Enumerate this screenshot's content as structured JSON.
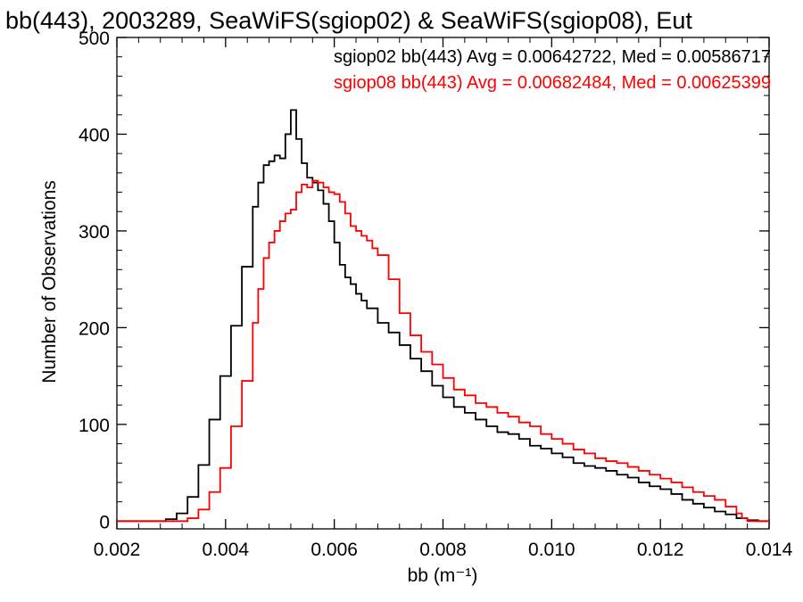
{
  "chart_data": {
    "type": "line",
    "title": "bb(443), 2003289, SeaWiFS(sgiop02) & SeaWiFS(sgiop08), Eut",
    "xlabel": "bb (m⁻¹)",
    "ylabel": "Number of Observations",
    "xlim": [
      0.002,
      0.014
    ],
    "ylim": [
      -8,
      500
    ],
    "grid": false,
    "x_ticks": [
      "0.002",
      "0.004",
      "0.006",
      "0.008",
      "0.010",
      "0.012",
      "0.014"
    ],
    "y_ticks": [
      "0",
      "100",
      "200",
      "300",
      "400",
      "500"
    ],
    "annotations": [
      {
        "text": "sgiop02 bb(443) Avg = 0.00642722, Med = 0.00586717",
        "color": "#000000"
      },
      {
        "text": "sgiop08 bb(443) Avg = 0.00682484, Med = 0.00625399",
        "color": "#ff0000"
      }
    ],
    "series": [
      {
        "color": "#000000",
        "x": [
          0.002,
          0.0025,
          0.0029,
          0.0031,
          0.0033,
          0.0035,
          0.0037,
          0.0039,
          0.0041,
          0.0043,
          0.0045,
          0.0046,
          0.0047,
          0.0048,
          0.0049,
          0.005,
          0.0051,
          0.0052,
          0.0053,
          0.0054,
          0.0055,
          0.0056,
          0.0057,
          0.0058,
          0.0059,
          0.006,
          0.0061,
          0.0062,
          0.0063,
          0.0064,
          0.0065,
          0.0066,
          0.0068,
          0.007,
          0.0072,
          0.0074,
          0.0076,
          0.0078,
          0.008,
          0.0082,
          0.0084,
          0.0086,
          0.0088,
          0.009,
          0.0092,
          0.0094,
          0.0096,
          0.0098,
          0.01,
          0.0102,
          0.0104,
          0.0106,
          0.0108,
          0.011,
          0.0112,
          0.0114,
          0.0116,
          0.0118,
          0.012,
          0.0122,
          0.0124,
          0.0126,
          0.0128,
          0.013,
          0.0132,
          0.0134,
          0.0136,
          0.0138,
          0.014
        ],
        "values": [
          0,
          0,
          2,
          8,
          25,
          58,
          105,
          150,
          202,
          263,
          325,
          350,
          368,
          372,
          378,
          375,
          400,
          425,
          395,
          370,
          355,
          350,
          342,
          328,
          310,
          288,
          265,
          252,
          245,
          235,
          228,
          220,
          205,
          195,
          182,
          168,
          155,
          140,
          128,
          118,
          112,
          105,
          98,
          92,
          90,
          85,
          78,
          75,
          70,
          66,
          60,
          57,
          55,
          52,
          48,
          45,
          40,
          36,
          33,
          28,
          22,
          18,
          14,
          10,
          7,
          3,
          1,
          0,
          0
        ]
      },
      {
        "color": "#ff0000",
        "x": [
          0.002,
          0.003,
          0.0033,
          0.0035,
          0.0037,
          0.0039,
          0.0041,
          0.0043,
          0.0045,
          0.0046,
          0.0047,
          0.0048,
          0.0049,
          0.005,
          0.0051,
          0.0052,
          0.0053,
          0.0054,
          0.0055,
          0.0056,
          0.0057,
          0.0058,
          0.0059,
          0.006,
          0.0061,
          0.0062,
          0.0063,
          0.0064,
          0.0065,
          0.0066,
          0.0067,
          0.0068,
          0.007,
          0.0072,
          0.0074,
          0.0076,
          0.0078,
          0.008,
          0.0082,
          0.0084,
          0.0086,
          0.0088,
          0.009,
          0.0092,
          0.0094,
          0.0096,
          0.0098,
          0.01,
          0.0102,
          0.0104,
          0.0106,
          0.0108,
          0.011,
          0.0112,
          0.0114,
          0.0116,
          0.0118,
          0.012,
          0.0122,
          0.0124,
          0.0126,
          0.0128,
          0.013,
          0.0132,
          0.0134,
          0.0135,
          0.0136,
          0.014
        ],
        "values": [
          0,
          0,
          3,
          12,
          30,
          55,
          98,
          145,
          205,
          240,
          272,
          288,
          300,
          310,
          318,
          322,
          340,
          348,
          345,
          352,
          350,
          345,
          340,
          338,
          330,
          318,
          305,
          300,
          295,
          290,
          282,
          275,
          250,
          215,
          192,
          175,
          162,
          148,
          136,
          130,
          122,
          118,
          112,
          108,
          102,
          98,
          90,
          85,
          80,
          74,
          70,
          65,
          62,
          60,
          56,
          52,
          48,
          44,
          40,
          35,
          30,
          26,
          22,
          15,
          8,
          3,
          0,
          0
        ]
      }
    ]
  }
}
